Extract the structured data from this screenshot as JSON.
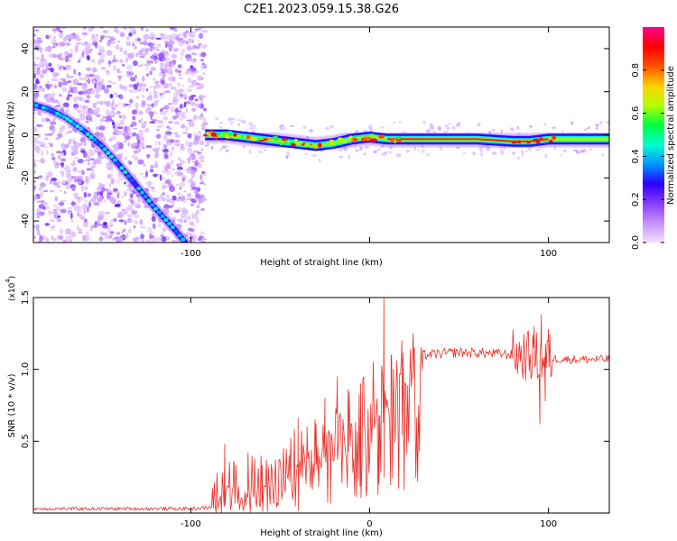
{
  "title": "C2E1.2023.059.15.38.G26",
  "chart_data": [
    {
      "type": "heatmap",
      "xlabel": "Height of straight line (km)",
      "ylabel": "Frequency (Hz)",
      "xlim": [
        -188,
        134
      ],
      "ylim": [
        -50,
        50
      ],
      "x_ticks": [
        -100,
        0,
        100
      ],
      "x_tick_labels": [
        "-100",
        "",
        "100"
      ],
      "y_ticks": [
        -40,
        -20,
        0,
        20,
        40
      ],
      "y_tick_labels": [
        "-40",
        "-20",
        "0",
        "20",
        "40"
      ],
      "colorbar": {
        "label": "Normalized spectral amplitude",
        "range": [
          0,
          1
        ],
        "ticks": [
          0.0,
          0.2,
          0.4,
          0.6,
          0.8
        ],
        "tick_labels": [
          "0.0",
          "0.2",
          "0.4",
          "0.6",
          "0.8"
        ],
        "stops": [
          "#f0e0ff",
          "#c890ff",
          "#8a3cff",
          "#2a00ff",
          "#0096ff",
          "#00ffd0",
          "#00ff40",
          "#b4ff00",
          "#ffd000",
          "#ff5000",
          "#ff0000",
          "#ff0090"
        ]
      },
      "noise_region_x": [
        -188,
        -92
      ],
      "trace_diagonal": [
        [
          -188,
          14
        ],
        [
          -180,
          12
        ],
        [
          -170,
          8
        ],
        [
          -160,
          2
        ],
        [
          -150,
          -5
        ],
        [
          -140,
          -14
        ],
        [
          -130,
          -24
        ],
        [
          -120,
          -34
        ],
        [
          -110,
          -43
        ],
        [
          -103,
          -50
        ]
      ],
      "trace_main": [
        [
          -92,
          0
        ],
        [
          -80,
          0
        ],
        [
          -70,
          -1
        ],
        [
          -60,
          -2
        ],
        [
          -50,
          -3
        ],
        [
          -40,
          -4
        ],
        [
          -30,
          -5
        ],
        [
          -20,
          -4
        ],
        [
          -10,
          -2
        ],
        [
          0,
          -1
        ],
        [
          10,
          -2
        ],
        [
          30,
          -2
        ],
        [
          60,
          -2
        ],
        [
          80,
          -3
        ],
        [
          90,
          -3
        ],
        [
          100,
          -2
        ],
        [
          134,
          -2
        ]
      ]
    },
    {
      "type": "line",
      "xlabel": "Height of straight line (km)",
      "ylabel": "SNR (10 * v/v)",
      "y_exponent_label": "(x10",
      "y_exponent_power": "4",
      "y_exponent_close": ")",
      "xlim": [
        -188,
        134
      ],
      "ylim": [
        0,
        1.5
      ],
      "x_ticks": [
        -100,
        0,
        100
      ],
      "x_tick_labels": [
        "-100",
        "0",
        "100"
      ],
      "y_ticks": [
        0.5,
        1.0,
        1.5
      ],
      "y_tick_labels": [
        "0.5",
        "1.0",
        "1.5"
      ],
      "color": "#e8302a",
      "envelope": [
        [
          -188,
          0.03
        ],
        [
          -100,
          0.03
        ],
        [
          -88,
          0.04
        ],
        [
          -80,
          0.2
        ],
        [
          -70,
          0.2
        ],
        [
          -60,
          0.18
        ],
        [
          -50,
          0.26
        ],
        [
          -40,
          0.4
        ],
        [
          -30,
          0.45
        ],
        [
          -20,
          0.52
        ],
        [
          -10,
          0.66
        ],
        [
          0,
          0.78
        ],
        [
          10,
          0.85
        ],
        [
          20,
          1.02
        ],
        [
          30,
          1.1
        ],
        [
          50,
          1.12
        ],
        [
          70,
          1.11
        ],
        [
          85,
          1.1
        ],
        [
          95,
          1.08
        ],
        [
          110,
          1.07
        ],
        [
          134,
          1.07
        ]
      ],
      "spikes": [
        [
          -81,
          0.48
        ],
        [
          -76,
          0.36
        ],
        [
          -68,
          0.42
        ],
        [
          -60,
          0.33
        ],
        [
          -55,
          0.34
        ],
        [
          -45,
          0.4
        ],
        [
          -40,
          0.66
        ],
        [
          -35,
          0.6
        ],
        [
          -30,
          0.62
        ],
        [
          -25,
          0.8
        ],
        [
          -18,
          0.95
        ],
        [
          -12,
          0.86
        ],
        [
          -5,
          0.9
        ],
        [
          2,
          1.05
        ],
        [
          8,
          1.5
        ],
        [
          12,
          1.1
        ],
        [
          18,
          1.2
        ],
        [
          25,
          1.15
        ],
        [
          80,
          1.2
        ],
        [
          92,
          1.3
        ],
        [
          96,
          1.38
        ],
        [
          100,
          1.28
        ]
      ],
      "dips": [
        [
          -60,
          0.01
        ],
        [
          -40,
          0.02
        ],
        [
          -22,
          0.07
        ],
        [
          5,
          0.2
        ],
        [
          8,
          0.25
        ],
        [
          95,
          0.62
        ],
        [
          98,
          0.78
        ]
      ]
    }
  ]
}
